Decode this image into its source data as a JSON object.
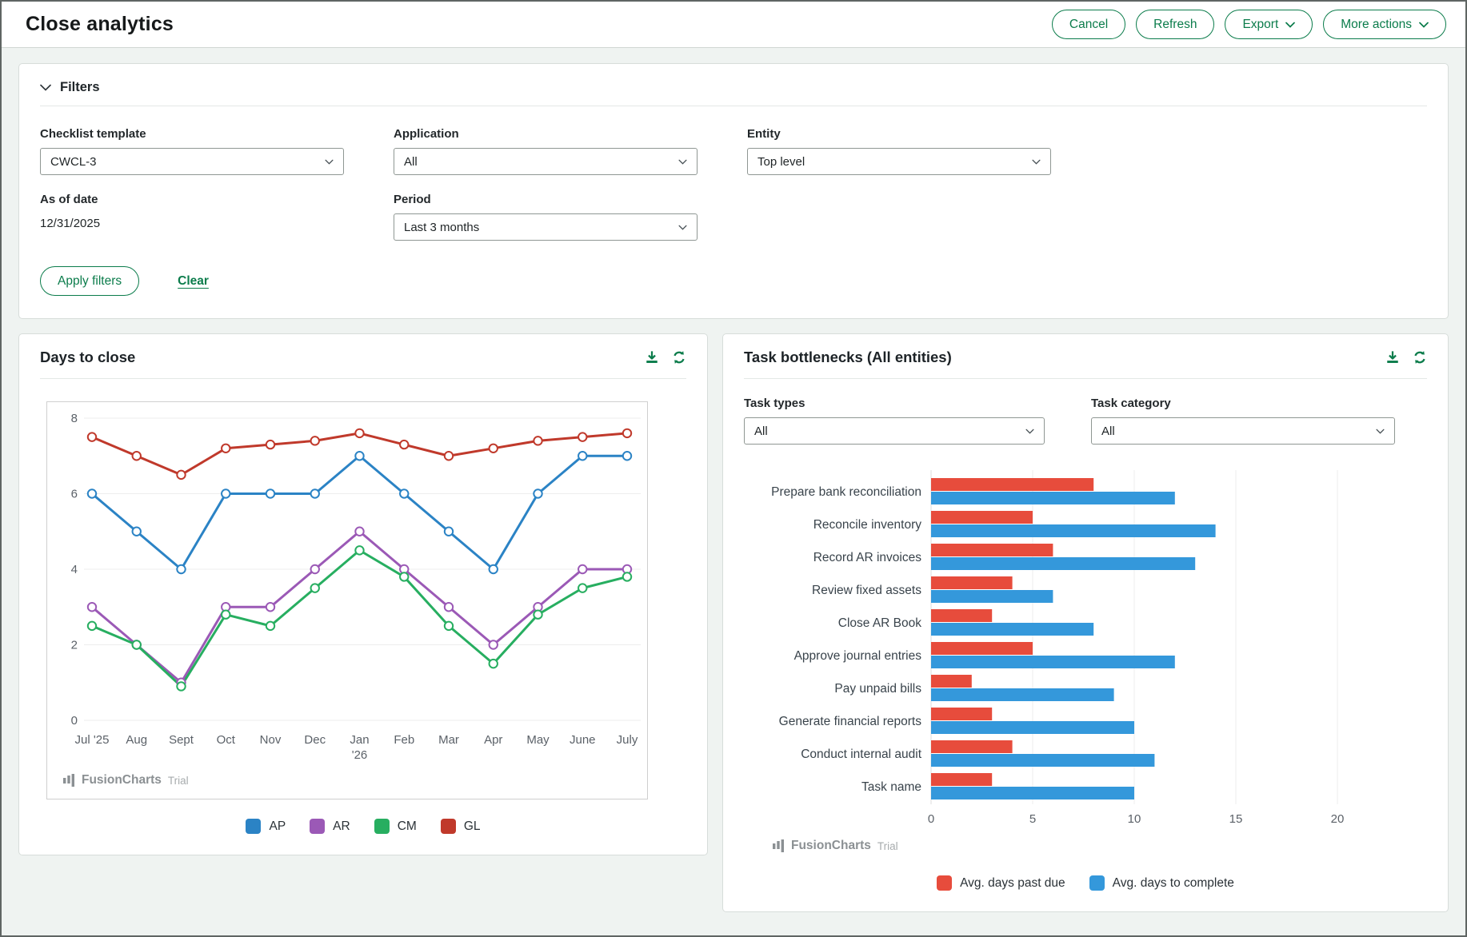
{
  "header": {
    "title": "Close analytics",
    "actions": [
      {
        "label": "Cancel",
        "has_menu": false
      },
      {
        "label": "Refresh",
        "has_menu": false
      },
      {
        "label": "Export",
        "has_menu": true
      },
      {
        "label": "More actions",
        "has_menu": true
      }
    ]
  },
  "filters": {
    "title": "Filters",
    "checklist_template": {
      "label": "Checklist template",
      "value": "CWCL-3"
    },
    "application": {
      "label": "Application",
      "value": "All"
    },
    "entity": {
      "label": "Entity",
      "value": "Top level"
    },
    "as_of_date": {
      "label": "As of date",
      "value": "12/31/2025"
    },
    "period": {
      "label": "Period",
      "value": "Last 3 months"
    },
    "apply_label": "Apply filters",
    "clear_label": "Clear"
  },
  "task_filters": {
    "task_types": {
      "label": "Task types",
      "value": "All"
    },
    "task_category": {
      "label": "Task category",
      "value": "All"
    }
  },
  "watermark": {
    "brand": "FusionCharts",
    "suffix": "Trial"
  },
  "colors": {
    "accent_green": "#0b7c4b"
  },
  "chart_data": [
    {
      "type": "line",
      "title": "Days to close",
      "categories": [
        "Jul '25",
        "Aug",
        "Sept",
        "Oct",
        "Nov",
        "Dec",
        "Jan",
        "Feb",
        "Mar",
        "Apr",
        "May",
        "June",
        "July"
      ],
      "x_secondary_label": {
        "index": 6,
        "text": "'26"
      },
      "series": [
        {
          "name": "AP",
          "color": "#2b83c5",
          "values": [
            6,
            5,
            4,
            6,
            6,
            6,
            7,
            6,
            5,
            4,
            6,
            7,
            7
          ]
        },
        {
          "name": "AR",
          "color": "#9b59b6",
          "values": [
            3,
            2,
            1,
            3,
            3,
            4,
            5,
            4,
            3,
            2,
            3,
            4,
            4
          ]
        },
        {
          "name": "CM",
          "color": "#27ae60",
          "values": [
            2.5,
            2,
            0.9,
            2.8,
            2.5,
            3.5,
            4.5,
            3.8,
            2.5,
            1.5,
            2.8,
            3.5,
            3.8
          ]
        },
        {
          "name": "GL",
          "color": "#c0392b",
          "values": [
            7.5,
            7,
            6.5,
            7.2,
            7.3,
            7.4,
            7.6,
            7.3,
            7,
            7.2,
            7.4,
            7.5,
            7.6
          ]
        }
      ],
      "ylim": [
        0,
        8
      ],
      "yticks": [
        0,
        2,
        4,
        6,
        8
      ],
      "grid": true,
      "legend_position": "bottom"
    },
    {
      "type": "bar",
      "orientation": "horizontal",
      "title": "Task bottlenecks (All entities)",
      "categories": [
        "Prepare bank reconciliation",
        "Reconcile inventory",
        "Record AR invoices",
        "Review fixed assets",
        "Close AR Book",
        "Approve journal entries",
        "Pay unpaid bills",
        "Generate financial reports",
        "Conduct internal audit",
        "Task name"
      ],
      "series": [
        {
          "name": "Avg. days past due",
          "color": "#e74c3c",
          "values": [
            8,
            5,
            6,
            4,
            3,
            5,
            2,
            3,
            4,
            3
          ]
        },
        {
          "name": "Avg. days to complete",
          "color": "#3498db",
          "values": [
            12,
            14,
            13,
            6,
            8,
            12,
            9,
            10,
            11,
            10
          ]
        }
      ],
      "xticks": [
        0,
        5,
        10,
        15,
        20
      ],
      "xlim": [
        0,
        21.5
      ],
      "grid": true,
      "legend_position": "bottom"
    }
  ]
}
